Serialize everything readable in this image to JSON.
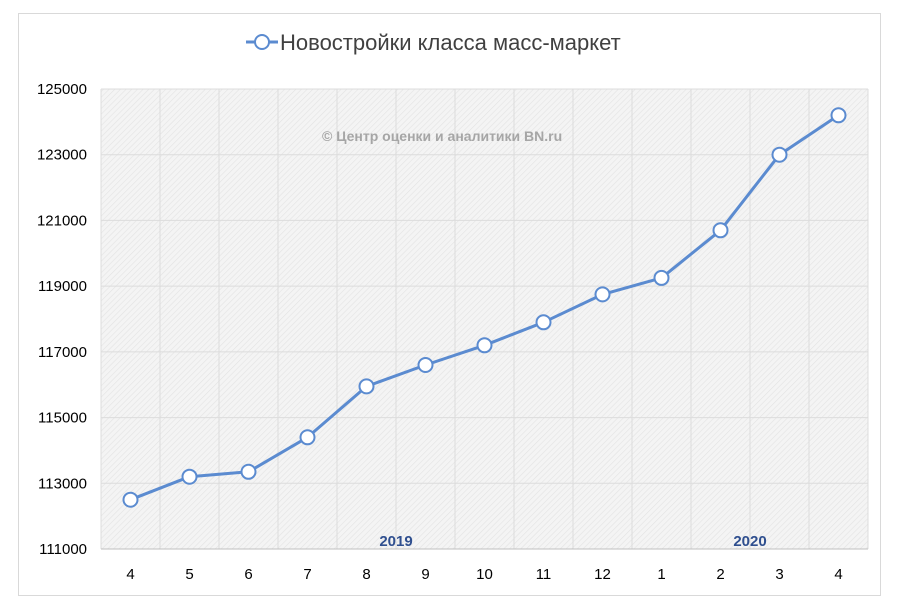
{
  "chart_data": {
    "type": "line",
    "title": "",
    "legend": {
      "placement": "top-center",
      "entries": [
        "Новостройки класса масс-маркет"
      ]
    },
    "categories": [
      "4",
      "5",
      "6",
      "7",
      "8",
      "9",
      "10",
      "11",
      "12",
      "1",
      "2",
      "3",
      "4"
    ],
    "year_labels": [
      {
        "label": "2019",
        "category_index": 4.5
      },
      {
        "label": "2020",
        "category_index": 10.5
      }
    ],
    "series": [
      {
        "name": "Новостройки класса масс-маркет",
        "color": "#5b8bd0",
        "values": [
          112500,
          113200,
          113350,
          114400,
          115950,
          116600,
          117200,
          117900,
          118750,
          119250,
          120700,
          123000,
          124200
        ]
      }
    ],
    "ylim": [
      111000,
      125000
    ],
    "yticks": [
      111000,
      113000,
      115000,
      117000,
      119000,
      121000,
      123000,
      125000
    ],
    "xlabel": "",
    "ylabel": "",
    "grid": true,
    "watermark": "© Центр оценки и аналитики BN.ru"
  }
}
